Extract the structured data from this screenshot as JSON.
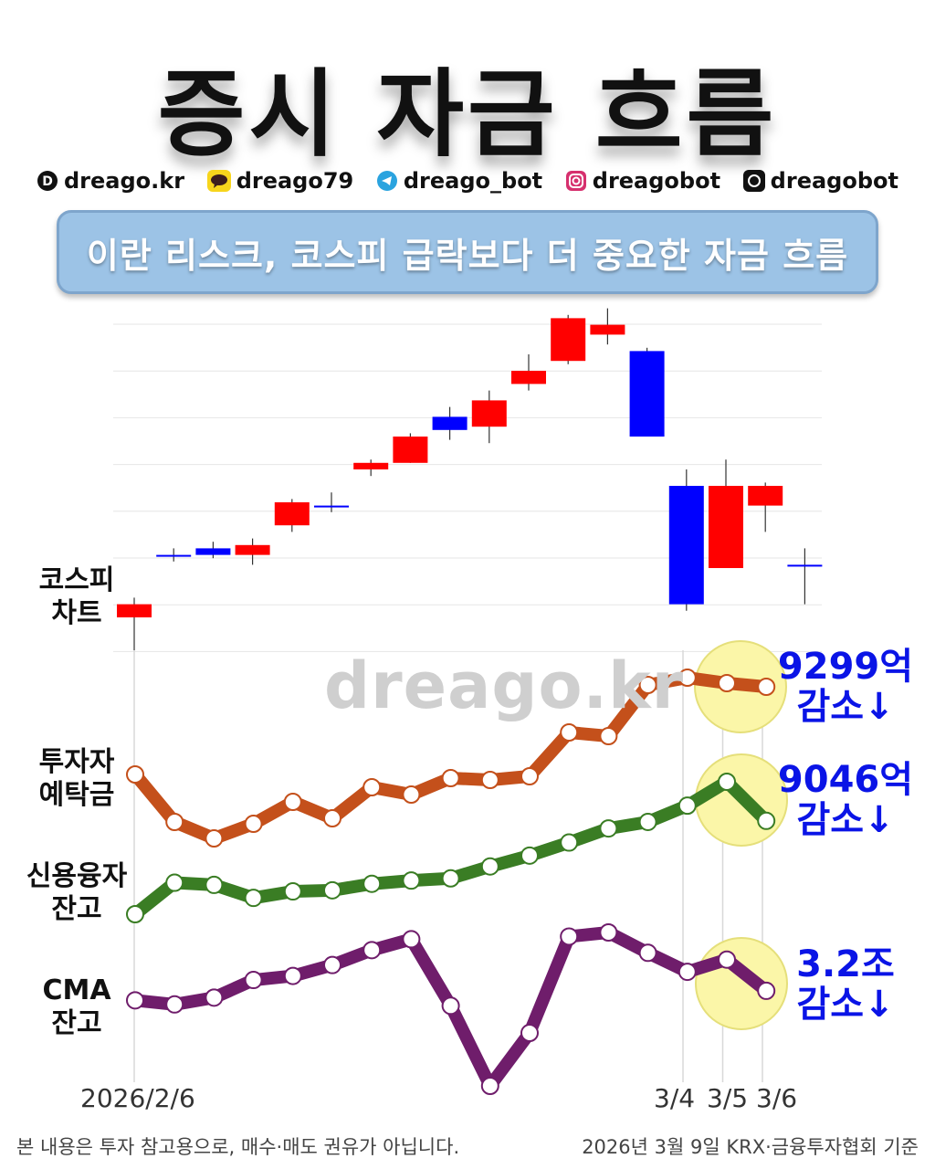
{
  "title": "증시 자금 흐름",
  "socials": [
    {
      "icon": "dreago-logo-icon",
      "handle": "dreago.kr",
      "color": "#111111"
    },
    {
      "icon": "kakaotalk-icon",
      "handle": "dreago79",
      "color": "#f7d51c"
    },
    {
      "icon": "telegram-icon",
      "handle": "dreago_bot",
      "color": "#2aa3df"
    },
    {
      "icon": "instagram-icon",
      "handle": "dreagobot",
      "color": "#d6306e"
    },
    {
      "icon": "threads-icon",
      "handle": "dreagobot",
      "color": "#111111"
    }
  ],
  "banner": "이란 리스크, 코스피 급락보다 더 중요한 자금 흐름",
  "watermark": "dreago.kr",
  "labels": {
    "kospi": "코스피\n차트",
    "deposit": "투자자\n예탁금",
    "credit": "신용융자\n잔고",
    "cma": "CMA\n잔고"
  },
  "annotations": {
    "deposit": "9299억\n감소↓",
    "credit": "9046억\n감소↓",
    "cma": "3.2조\n감소↓"
  },
  "dates": {
    "start": "2026/2/6",
    "d1": "3/4",
    "d2": "3/5",
    "d3": "3/6"
  },
  "footer": {
    "left": "본 내용은 투자 참고용으로, 매수·매도 권유가 아닙니다.",
    "right": "2026년 3월 9일 KRX·금융투자협회 기준"
  },
  "colors": {
    "up": "#ff0000",
    "down": "#0000ff",
    "deposit": "#c4501b",
    "credit": "#3a7d24",
    "cma": "#6f1d6b",
    "highlight": "#fbf6a8"
  },
  "chart_data": [
    {
      "type": "candlestick",
      "title": "코스피 차트",
      "ylim": [
        0,
        100
      ],
      "candles": [
        {
          "o": 10,
          "c": 14,
          "h": 16,
          "l": 0
        },
        {
          "o": 29,
          "c": 29,
          "h": 31,
          "l": 27
        },
        {
          "o": 31,
          "c": 29,
          "h": 33,
          "l": 28
        },
        {
          "o": 29,
          "c": 32,
          "h": 34,
          "l": 26
        },
        {
          "o": 38,
          "c": 45,
          "h": 46,
          "l": 36
        },
        {
          "o": 44,
          "c": 44,
          "h": 48,
          "l": 42
        },
        {
          "o": 55,
          "c": 57,
          "h": 58,
          "l": 53
        },
        {
          "o": 57,
          "c": 65,
          "h": 66,
          "l": 57
        },
        {
          "o": 71,
          "c": 67,
          "h": 74,
          "l": 64
        },
        {
          "o": 68,
          "c": 76,
          "h": 79,
          "l": 63
        },
        {
          "o": 81,
          "c": 85,
          "h": 90,
          "l": 79
        },
        {
          "o": 88,
          "c": 101,
          "h": 102,
          "l": 87
        },
        {
          "o": 96,
          "c": 99,
          "h": 104,
          "l": 93
        },
        {
          "o": 91,
          "c": 65,
          "h": 92,
          "l": 65
        },
        {
          "o": 50,
          "c": 14,
          "h": 55,
          "l": 12
        },
        {
          "o": 25,
          "c": 50,
          "h": 58,
          "l": 25
        },
        {
          "o": 44,
          "c": 50,
          "h": 51,
          "l": 36
        },
        {
          "o": 26,
          "c": 26,
          "h": 31,
          "l": 14
        }
      ]
    },
    {
      "type": "line",
      "title": "투자자 예탁금",
      "values": [
        42,
        16,
        7,
        15,
        27,
        18,
        35,
        31,
        40,
        39,
        41,
        65,
        63,
        91,
        95,
        92,
        90
      ],
      "annotation": "9299억 감소↓"
    },
    {
      "type": "line",
      "title": "신용융자 잔고",
      "values": [
        2,
        31,
        29,
        17,
        23,
        24,
        30,
        33,
        35,
        46,
        56,
        68,
        81,
        87,
        102,
        124,
        88
      ],
      "annotation": "9046억 감소↓"
    },
    {
      "type": "line",
      "title": "CMA 잔고",
      "values": [
        63,
        60,
        65,
        78,
        81,
        89,
        100,
        108,
        59,
        0,
        39,
        110,
        113,
        98,
        84,
        93,
        70
      ],
      "annotation": "3.2조 감소↓"
    }
  ]
}
